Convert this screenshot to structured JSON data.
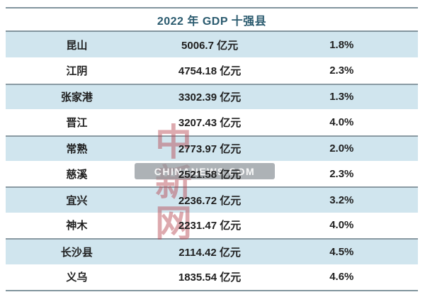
{
  "chart_data": {
    "type": "table",
    "title": "2022 年 GDP 十强县",
    "unit": "亿元",
    "rows": [
      {
        "name": "昆山",
        "gdp": "5006.7 亿元",
        "gdp_value": 5006.7,
        "growth": "1.8%",
        "growth_value": 1.8
      },
      {
        "name": "江阴",
        "gdp": "4754.18 亿元",
        "gdp_value": 4754.18,
        "growth": "2.3%",
        "growth_value": 2.3
      },
      {
        "name": "张家港",
        "gdp": "3302.39 亿元",
        "gdp_value": 3302.39,
        "growth": "1.3%",
        "growth_value": 1.3
      },
      {
        "name": "晋江",
        "gdp": "3207.43 亿元",
        "gdp_value": 3207.43,
        "growth": "4.0%",
        "growth_value": 4.0
      },
      {
        "name": "常熟",
        "gdp": "2773.97 亿元",
        "gdp_value": 2773.97,
        "growth": "2.0%",
        "growth_value": 2.0
      },
      {
        "name": "慈溪",
        "gdp": "2521.58 亿元",
        "gdp_value": 2521.58,
        "growth": "2.3%",
        "growth_value": 2.3
      },
      {
        "name": "宜兴",
        "gdp": "2236.72 亿元",
        "gdp_value": 2236.72,
        "growth": "3.2%",
        "growth_value": 3.2
      },
      {
        "name": "神木",
        "gdp": "2231.47 亿元",
        "gdp_value": 2231.47,
        "growth": "4.0%",
        "growth_value": 4.0
      },
      {
        "name": "长沙县",
        "gdp": "2114.42 亿元",
        "gdp_value": 2114.42,
        "growth": "4.5%",
        "growth_value": 4.5
      },
      {
        "name": "义乌",
        "gdp": "1835.54 亿元",
        "gdp_value": 1835.54,
        "growth": "4.6%",
        "growth_value": 4.6
      }
    ],
    "legend_position": "none",
    "grid": "horizontal-group-separators"
  },
  "watermark": {
    "logo_text": "中新网",
    "banner_text": "CHINANEWS.COM"
  },
  "colors": {
    "row_highlight": "#d0e5ee",
    "row_plain": "#ffffff",
    "border_line": "#82959e",
    "title_text": "#2a5a6e",
    "cell_text": "#1f1f1f",
    "watermark_red": "#b84b55",
    "banner_gray": "#8e949a"
  }
}
